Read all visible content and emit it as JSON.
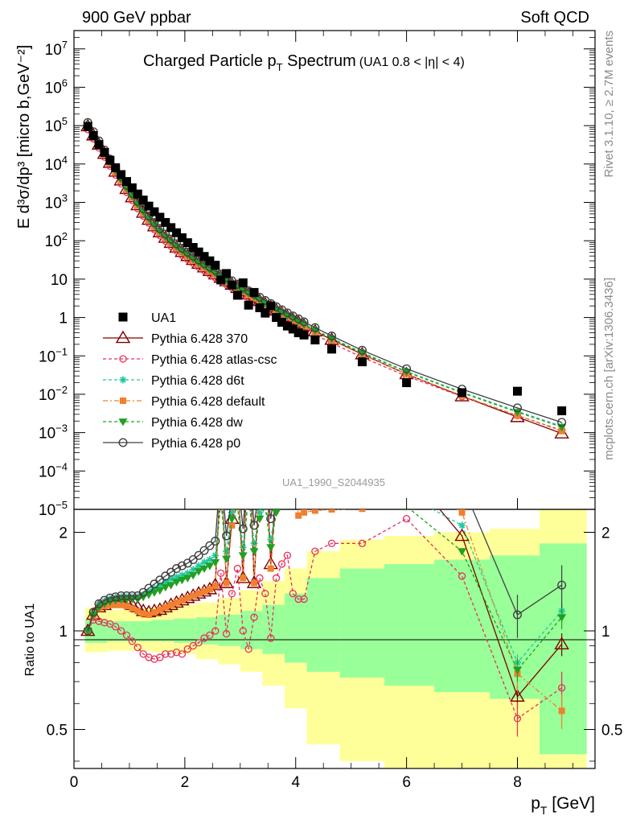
{
  "header": {
    "left": "900 GeV ppbar",
    "right": "Soft QCD"
  },
  "side_labels": {
    "rivet": "Rivet 3.1.10, ≥ 2.7M events",
    "mcplots": "mcplots.cern.ch [arXiv:1306.3436]"
  },
  "watermark": "UA1_1990_S2044935",
  "main_title": {
    "text": "Charged Particle p",
    "sub": "T",
    "rest": " Spectrum",
    "small": "(UA1 0.8 < |η| < 4)"
  },
  "ylabel_main": "E d³σ/dp³ [micro b,GeV⁻²]",
  "ylabel_ratio": "Ratio to UA1",
  "xlabel": {
    "main": "p",
    "sub": "T",
    "rest": " [GeV]"
  },
  "colors": {
    "ua1": "#000000",
    "p370": "#800000",
    "atlas": "#e8305a",
    "d6t": "#20c8a0",
    "default": "#f08030",
    "dw": "#20a020",
    "p0": "#404040",
    "band_inner": "#99ff99",
    "band_outer": "#ffff99"
  },
  "chart_data": {
    "type": "scatter",
    "main": {
      "yscale": "log",
      "ylim": [
        1e-05,
        30000000.0
      ],
      "yticks": [
        {
          "v": 10000000.0,
          "b": "10",
          "e": "7"
        },
        {
          "v": 1000000.0,
          "b": "10",
          "e": "6"
        },
        {
          "v": 100000.0,
          "b": "10",
          "e": "5"
        },
        {
          "v": 10000.0,
          "b": "10",
          "e": "4"
        },
        {
          "v": 1000.0,
          "b": "10",
          "e": "3"
        },
        {
          "v": 100,
          "b": "10",
          "e": "2"
        },
        {
          "v": 10,
          "b": "10",
          "e": ""
        },
        {
          "v": 1,
          "b": "1",
          "e": ""
        },
        {
          "v": 0.1,
          "b": "10",
          "e": "−1"
        },
        {
          "v": 0.01,
          "b": "10",
          "e": "−2"
        },
        {
          "v": 0.001,
          "b": "10",
          "e": "−3"
        },
        {
          "v": 0.0001,
          "b": "10",
          "e": "−4"
        },
        {
          "v": 1e-05,
          "b": "10",
          "e": "−5"
        }
      ]
    },
    "ratio": {
      "yscale": "log",
      "ylim": [
        0.38,
        2.35
      ],
      "yticks": [
        {
          "v": 0.5,
          "t": "0.5"
        },
        {
          "v": 1,
          "t": "1"
        },
        {
          "v": 2,
          "t": "2"
        }
      ]
    },
    "xlim": [
      0,
      9.4
    ],
    "xticks": [
      0,
      2,
      4,
      6,
      8
    ],
    "x": [
      0.25,
      0.35,
      0.45,
      0.55,
      0.65,
      0.75,
      0.85,
      0.95,
      1.05,
      1.15,
      1.25,
      1.35,
      1.45,
      1.55,
      1.65,
      1.75,
      1.85,
      1.95,
      2.05,
      2.15,
      2.25,
      2.35,
      2.45,
      2.55,
      2.65,
      2.75,
      2.85,
      2.95,
      3.05,
      3.15,
      3.25,
      3.35,
      3.45,
      3.55,
      3.65,
      3.75,
      3.85,
      3.95,
      4.05,
      4.15,
      4.35,
      4.65,
      5.2,
      6.0,
      7.0,
      8.0,
      8.8
    ],
    "data": {
      "name": "UA1",
      "y": [
        95000,
        55000,
        32000,
        20000,
        12500,
        8000,
        5300,
        3500,
        2400,
        1650,
        1150,
        800,
        570,
        410,
        300,
        220,
        162,
        120,
        89,
        67,
        51,
        39,
        30,
        23,
        9.5,
        14,
        7,
        3.8,
        8,
        2.1,
        4.5,
        1.8,
        1.3,
        2.0,
        1.0,
        0.75,
        0.6,
        0.5,
        0.4,
        0.35,
        0.26,
        0.15,
        0.07,
        0.02,
        0.011,
        0.012,
        0.0037
      ]
    },
    "ratio_band": [
      {
        "x0": 0.2,
        "x1": 0.6,
        "in": [
          0.92,
          1.08
        ],
        "out": [
          0.86,
          1.18
        ]
      },
      {
        "x0": 0.6,
        "x1": 1.0,
        "in": [
          0.93,
          1.07
        ],
        "out": [
          0.87,
          1.16
        ]
      },
      {
        "x0": 1.0,
        "x1": 1.4,
        "in": [
          0.93,
          1.07
        ],
        "out": [
          0.87,
          1.17
        ]
      },
      {
        "x0": 1.4,
        "x1": 1.8,
        "in": [
          0.93,
          1.08
        ],
        "out": [
          0.86,
          1.18
        ]
      },
      {
        "x0": 1.8,
        "x1": 2.2,
        "in": [
          0.92,
          1.09
        ],
        "out": [
          0.85,
          1.2
        ]
      },
      {
        "x0": 2.2,
        "x1": 2.6,
        "in": [
          0.91,
          1.1
        ],
        "out": [
          0.82,
          1.22
        ]
      },
      {
        "x0": 2.6,
        "x1": 3.0,
        "in": [
          0.9,
          1.12
        ],
        "out": [
          0.79,
          1.26
        ]
      },
      {
        "x0": 3.0,
        "x1": 3.4,
        "in": [
          0.88,
          1.15
        ],
        "out": [
          0.75,
          1.33
        ]
      },
      {
        "x0": 3.4,
        "x1": 3.8,
        "in": [
          0.85,
          1.2
        ],
        "out": [
          0.68,
          1.42
        ]
      },
      {
        "x0": 3.8,
        "x1": 4.2,
        "in": [
          0.8,
          1.3
        ],
        "out": [
          0.58,
          1.55
        ]
      },
      {
        "x0": 4.2,
        "x1": 4.8,
        "in": [
          0.75,
          1.45
        ],
        "out": [
          0.45,
          1.75
        ]
      },
      {
        "x0": 4.8,
        "x1": 5.6,
        "in": [
          0.72,
          1.55
        ],
        "out": [
          0.4,
          1.9
        ]
      },
      {
        "x0": 5.6,
        "x1": 6.5,
        "in": [
          0.68,
          1.6
        ],
        "out": [
          0.38,
          1.95
        ]
      },
      {
        "x0": 6.5,
        "x1": 7.5,
        "in": [
          0.65,
          1.65
        ],
        "out": [
          0.38,
          2.0
        ]
      },
      {
        "x0": 7.5,
        "x1": 8.4,
        "in": [
          0.62,
          1.7
        ],
        "out": [
          0.38,
          2.05
        ]
      },
      {
        "x0": 8.4,
        "x1": 9.25,
        "in": [
          0.42,
          1.85
        ],
        "out": [
          0.38,
          2.35
        ]
      }
    ],
    "series": [
      {
        "name": "Pythia 6.428 370",
        "key": "p370",
        "marker": "tri-open",
        "dash": "",
        "ratio": [
          1.0,
          1.12,
          1.18,
          1.2,
          1.22,
          1.23,
          1.23,
          1.22,
          1.2,
          1.18,
          1.15,
          1.14,
          1.15,
          1.16,
          1.18,
          1.2,
          1.22,
          1.24,
          1.26,
          1.28,
          1.3,
          1.32,
          1.34,
          1.38,
          3.2,
          1.4,
          2.2,
          3.0,
          1.45,
          4.5,
          1.4,
          3.0,
          4.0,
          1.6,
          2.9,
          4.0,
          4.6,
          5.0,
          5.0,
          4.7,
          4.8,
          5.0,
          4.2,
          3.1,
          1.95,
          0.63,
          0.91
        ],
        "err_last": 0.08
      },
      {
        "name": "Pythia 6.428 atlas-csc",
        "key": "atlas",
        "marker": "circ-open-small",
        "dash": "4,3",
        "ratio": [
          1.0,
          1.08,
          1.07,
          1.06,
          1.05,
          1.03,
          1.0,
          0.97,
          0.93,
          0.89,
          0.85,
          0.83,
          0.82,
          0.83,
          0.85,
          0.85,
          0.86,
          0.85,
          0.88,
          0.9,
          0.92,
          0.95,
          0.97,
          1.0,
          1.5,
          0.98,
          1.3,
          1.55,
          1.0,
          0.88,
          1.1,
          1.45,
          1.3,
          0.95,
          1.45,
          1.6,
          1.7,
          1.3,
          1.25,
          1.25,
          1.75,
          1.85,
          1.85,
          2.2,
          1.47,
          0.54,
          0.67
        ],
        "err_last": 0.12
      },
      {
        "name": "Pythia 6.428 d6t",
        "key": "d6t",
        "marker": "star",
        "dash": "4,3",
        "ratio": [
          1.0,
          1.13,
          1.2,
          1.23,
          1.25,
          1.26,
          1.27,
          1.27,
          1.27,
          1.27,
          1.29,
          1.32,
          1.35,
          1.38,
          1.41,
          1.44,
          1.46,
          1.48,
          1.5,
          1.54,
          1.58,
          1.62,
          1.65,
          1.7,
          2.7,
          1.75,
          2.3,
          2.6,
          1.8,
          2.8,
          1.85,
          2.3,
          2.5,
          1.9,
          2.4,
          2.6,
          2.8,
          3.0,
          3.0,
          3.0,
          3.2,
          3.5,
          3.0,
          2.6,
          2.1,
          0.8,
          1.15
        ],
        "err_last": 0.06
      },
      {
        "name": "Pythia 6.428 default",
        "key": "default",
        "marker": "sq-filled-small",
        "dash": "6,3,2,3",
        "ratio": [
          1.0,
          1.11,
          1.17,
          1.19,
          1.2,
          1.2,
          1.2,
          1.19,
          1.17,
          1.15,
          1.13,
          1.12,
          1.14,
          1.16,
          1.18,
          1.2,
          1.22,
          1.24,
          1.26,
          1.28,
          1.3,
          1.32,
          1.34,
          1.37,
          3.0,
          1.4,
          2.1,
          2.8,
          1.45,
          4.5,
          1.4,
          3.0,
          3.5,
          1.55,
          2.5,
          3.2,
          3.5,
          3.0,
          2.25,
          2.3,
          2.33,
          2.35,
          2.36,
          3.0,
          2.3,
          0.74,
          0.57
        ],
        "err_last": 0.12
      },
      {
        "name": "Pythia 6.428 dw",
        "key": "dw",
        "marker": "tri-down-filled",
        "dash": "4,3",
        "ratio": [
          1.0,
          1.12,
          1.18,
          1.21,
          1.23,
          1.24,
          1.25,
          1.25,
          1.25,
          1.25,
          1.27,
          1.29,
          1.31,
          1.33,
          1.36,
          1.38,
          1.41,
          1.43,
          1.45,
          1.48,
          1.52,
          1.55,
          1.58,
          1.62,
          2.5,
          1.66,
          2.2,
          2.4,
          1.7,
          2.6,
          1.75,
          2.2,
          2.4,
          1.8,
          2.3,
          2.5,
          2.7,
          2.9,
          2.9,
          2.9,
          3.0,
          3.2,
          2.8,
          2.4,
          1.75,
          0.76,
          1.1
        ],
        "err_last": 0.08
      },
      {
        "name": "Pythia 6.428 p0",
        "key": "p0",
        "marker": "circ-open",
        "dash": "",
        "ratio": [
          1.0,
          1.14,
          1.21,
          1.24,
          1.26,
          1.27,
          1.28,
          1.28,
          1.28,
          1.28,
          1.31,
          1.35,
          1.39,
          1.43,
          1.47,
          1.51,
          1.55,
          1.58,
          1.61,
          1.65,
          1.7,
          1.76,
          1.82,
          1.88,
          3.2,
          1.95,
          2.6,
          3.0,
          2.05,
          3.5,
          2.1,
          2.8,
          3.0,
          2.2,
          2.9,
          3.2,
          3.5,
          3.8,
          3.8,
          3.8,
          4.0,
          4.2,
          4.1,
          4.7,
          2.8,
          1.12,
          1.38
        ],
        "err_last": 0.15
      }
    ]
  }
}
